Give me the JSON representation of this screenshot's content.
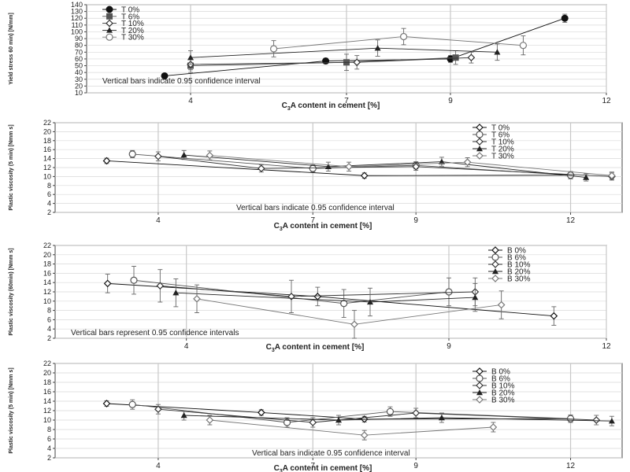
{
  "chart_data": [
    {
      "type": "line",
      "ylabel": "Yield stress 60 min) [N/mm]",
      "xlabel_main": "C",
      "xlabel_sub": "3",
      "xlabel_rest": "A content in cement [%]",
      "ylim": [
        10,
        140
      ],
      "yticks": [
        "10",
        "20",
        "30",
        "40",
        "50",
        "60",
        "70",
        "80",
        "90",
        "100",
        "110",
        "120",
        "130",
        "140"
      ],
      "xlim": [
        2,
        12
      ],
      "xticks": [
        "4",
        "7",
        "9",
        "12"
      ],
      "xtick_values": [
        4,
        7,
        9,
        12
      ],
      "grid": true,
      "legend_position": "top-left",
      "note": "Vertical bars indicate 0.95 confidence interval",
      "series": [
        {
          "name": "T 0%",
          "marker": "circle-filled",
          "x": [
            3.5,
            6.6,
            9.0,
            11.2
          ],
          "y": [
            35,
            57,
            60,
            120
          ],
          "err": [
            3,
            4,
            5,
            6
          ]
        },
        {
          "name": "T 6%",
          "marker": "square-filled",
          "x": [
            4.0,
            7.0,
            9.1
          ],
          "y": [
            50,
            55,
            62
          ],
          "err": [
            10,
            12,
            10
          ]
        },
        {
          "name": "T 10%",
          "marker": "diamond",
          "x": [
            4.0,
            7.2,
            9.4
          ],
          "y": [
            52,
            55,
            62
          ],
          "err": [
            8,
            10,
            8
          ]
        },
        {
          "name": "T 20%",
          "marker": "triangle",
          "x": [
            4.0,
            7.6,
            9.9
          ],
          "y": [
            62,
            76,
            70
          ],
          "err": [
            10,
            12,
            12
          ]
        },
        {
          "name": "T 30%",
          "marker": "circle-open",
          "x": [
            5.6,
            8.1,
            10.4
          ],
          "y": [
            75,
            93,
            80
          ],
          "err": [
            12,
            12,
            14
          ]
        }
      ]
    },
    {
      "type": "line",
      "ylabel": "Plastic viscosity (5 min) [Nmm s]",
      "xlabel_main": "C",
      "xlabel_sub": "3",
      "xlabel_rest": "A content in cement [%]",
      "ylim": [
        2,
        22
      ],
      "yticks": [
        "2",
        "4",
        "6",
        "8",
        "10",
        "12",
        "14",
        "16",
        "18",
        "20",
        "22"
      ],
      "xlim": [
        2,
        13
      ],
      "xticks": [
        "4",
        "7",
        "9",
        "12"
      ],
      "xtick_values": [
        4,
        7,
        9,
        12
      ],
      "grid": true,
      "legend_position": "top-right",
      "note": "Vertical bars indicate 0.95 confidence interval",
      "series": [
        {
          "name": "T 0%",
          "marker": "diamond",
          "x": [
            3.0,
            8.0,
            12.0
          ],
          "y": [
            13.5,
            10.2,
            10.3
          ],
          "err": [
            0.6,
            0.6,
            0.8
          ]
        },
        {
          "name": "T 6%",
          "marker": "circle-open",
          "x": [
            3.5,
            7.0,
            9.0,
            12.0
          ],
          "y": [
            15.0,
            11.8,
            12.5,
            10.3
          ],
          "err": [
            0.8,
            0.8,
            0.8,
            0.8
          ]
        },
        {
          "name": "T 10%",
          "marker": "diamond",
          "x": [
            4.0,
            6.0,
            9.0,
            12.8
          ],
          "y": [
            14.5,
            11.8,
            12.2,
            10.0
          ],
          "err": [
            1.0,
            0.8,
            0.8,
            0.8
          ]
        },
        {
          "name": "T 20%",
          "marker": "triangle",
          "x": [
            4.5,
            7.3,
            9.5,
            12.3
          ],
          "y": [
            14.8,
            12.2,
            13.3,
            9.8
          ],
          "err": [
            1.0,
            1.0,
            1.0,
            0.8
          ]
        },
        {
          "name": "T 30%",
          "marker": "diamond",
          "x": [
            5.0,
            7.7,
            10.0,
            12.8
          ],
          "y": [
            14.7,
            12.2,
            13.2,
            10.2
          ],
          "err": [
            1.0,
            1.0,
            1.0,
            0.8
          ]
        }
      ]
    },
    {
      "type": "line",
      "ylabel": "Plastic viscosity (60min) [Nmm s]",
      "xlabel_main": "C",
      "xlabel_sub": "3",
      "xlabel_rest": "A content in cement [%]",
      "ylim": [
        2,
        22
      ],
      "yticks": [
        "2",
        "4",
        "6",
        "8",
        "10",
        "12",
        "14",
        "16",
        "18",
        "20",
        "22"
      ],
      "xlim": [
        1.5,
        12
      ],
      "xticks": [
        "4",
        "9",
        "12"
      ],
      "xtick_values": [
        4,
        9,
        12
      ],
      "grid": true,
      "legend_position": "top-right",
      "note": "Vertical bars represent 0.95 confidence intervals",
      "series": [
        {
          "name": "B 0%",
          "marker": "diamond",
          "x": [
            2.5,
            6.5,
            11.0
          ],
          "y": [
            13.8,
            11.0,
            6.8
          ],
          "err": [
            2.0,
            2.0,
            2.0
          ]
        },
        {
          "name": "B 6%",
          "marker": "circle-open",
          "x": [
            3.0,
            7.0,
            9.0
          ],
          "y": [
            14.5,
            9.5,
            12.0
          ],
          "err": [
            3.0,
            3.0,
            3.0
          ]
        },
        {
          "name": "B 10%",
          "marker": "diamond",
          "x": [
            3.5,
            6.0,
            9.5
          ],
          "y": [
            13.3,
            11.0,
            12.0
          ],
          "err": [
            3.5,
            3.5,
            3.0
          ]
        },
        {
          "name": "B 20%",
          "marker": "triangle",
          "x": [
            3.8,
            7.5,
            9.5
          ],
          "y": [
            11.8,
            9.8,
            10.8
          ],
          "err": [
            3.0,
            3.0,
            3.0
          ]
        },
        {
          "name": "B 30%",
          "marker": "diamond",
          "x": [
            4.2,
            7.2,
            10.0
          ],
          "y": [
            10.5,
            5.0,
            9.2
          ],
          "err": [
            3.0,
            3.0,
            3.0
          ]
        }
      ]
    },
    {
      "type": "line",
      "ylabel": "Plastic viscosity (5 min) [Nmm s]",
      "xlabel_main": "C",
      "xlabel_sub": "3",
      "xlabel_rest": "A content in cement [%]",
      "ylim": [
        2,
        22
      ],
      "yticks": [
        "2",
        "4",
        "6",
        "8",
        "10",
        "12",
        "14",
        "16",
        "18",
        "20",
        "22"
      ],
      "xlim": [
        2,
        13
      ],
      "xticks": [
        "4",
        "7",
        "9",
        "12"
      ],
      "xtick_values": [
        4,
        7,
        9,
        12
      ],
      "grid": true,
      "legend_position": "top-right",
      "note": "Vertical bars indicate 0.95 confidence interval",
      "series": [
        {
          "name": "B 0%",
          "marker": "diamond",
          "x": [
            3.0,
            6.0,
            8.0,
            12.0
          ],
          "y": [
            13.5,
            11.6,
            10.2,
            10.3
          ],
          "err": [
            0.6,
            0.6,
            0.6,
            0.6
          ]
        },
        {
          "name": "B 6%",
          "marker": "circle-open",
          "x": [
            3.5,
            6.5,
            8.5,
            12.0
          ],
          "y": [
            13.3,
            9.5,
            11.8,
            10.3
          ],
          "err": [
            1.0,
            1.0,
            1.0,
            0.8
          ]
        },
        {
          "name": "B 10%",
          "marker": "diamond",
          "x": [
            4.0,
            7.0,
            9.0,
            12.5
          ],
          "y": [
            12.3,
            9.5,
            11.5,
            10.0
          ],
          "err": [
            1.0,
            1.0,
            1.0,
            1.0
          ]
        },
        {
          "name": "B 20%",
          "marker": "triangle",
          "x": [
            4.5,
            7.5,
            9.5,
            12.8
          ],
          "y": [
            11.0,
            10.0,
            10.5,
            9.8
          ],
          "err": [
            1.0,
            1.0,
            1.0,
            1.0
          ]
        },
        {
          "name": "B 30%",
          "marker": "diamond",
          "x": [
            5.0,
            8.0,
            10.5
          ],
          "y": [
            10.0,
            6.8,
            8.5
          ],
          "err": [
            1.0,
            1.0,
            1.0
          ]
        }
      ]
    }
  ]
}
